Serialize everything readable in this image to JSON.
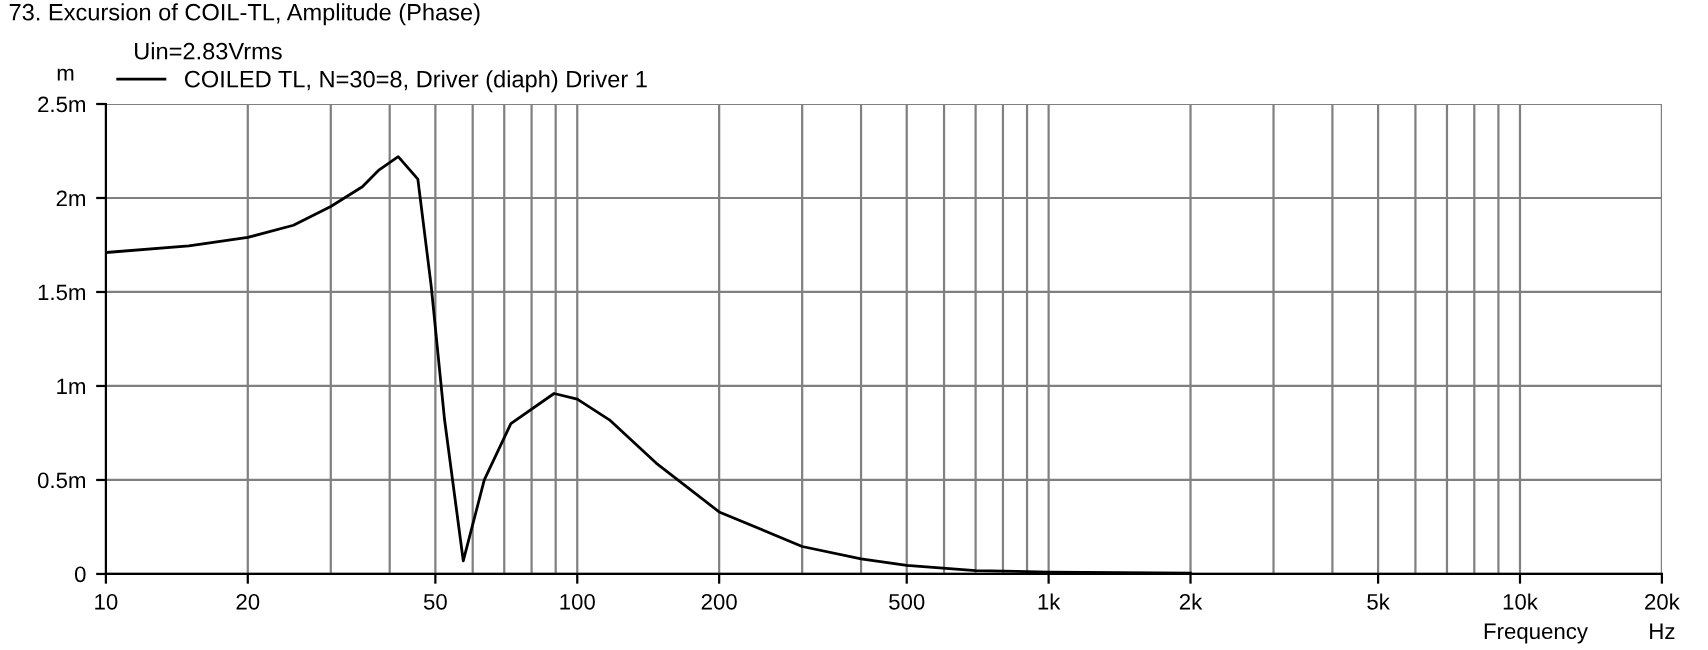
{
  "chart_data": {
    "type": "line",
    "title": "73. Excursion of COIL-TL, Amplitude (Phase)",
    "subtitle": "Uin=2.83Vrms",
    "xlabel": "Frequency",
    "ylabel": "m",
    "annotations": [
      "Hz"
    ],
    "series": [
      {
        "name": "COILED TL, N=30=8, Driver (diaph) Driver 1",
        "color": "#000000",
        "x": [
          10,
          15,
          20,
          25,
          30,
          35,
          38,
          41.7,
          45.9,
          49,
          52.3,
          57.3,
          63.5,
          72.3,
          89.3,
          100,
          117,
          147,
          200,
          300,
          400,
          500,
          700,
          1000,
          2000
        ],
        "values": [
          1.71,
          1.745,
          1.79,
          1.855,
          1.955,
          2.06,
          2.15,
          2.22,
          2.1,
          1.53,
          0.82,
          0.07,
          0.5,
          0.8,
          0.96,
          0.93,
          0.82,
          0.59,
          0.33,
          0.146,
          0.08,
          0.046,
          0.018,
          0.01,
          0.005
        ]
      }
    ],
    "log": "x",
    "xlim": [
      10,
      20000
    ],
    "xticks": [
      {
        "value": 10,
        "label": "10"
      },
      {
        "value": 20,
        "label": "20"
      },
      {
        "value": 50,
        "label": "50"
      },
      {
        "value": 100,
        "label": "100"
      },
      {
        "value": 200,
        "label": "200"
      },
      {
        "value": 500,
        "label": "500"
      },
      {
        "value": 1000,
        "label": "1k"
      },
      {
        "value": 2000,
        "label": "2k"
      },
      {
        "value": 5000,
        "label": "5k"
      },
      {
        "value": 10000,
        "label": "10k"
      },
      {
        "value": 20000,
        "label": "20k"
      }
    ],
    "ylim": [
      0,
      2.5
    ],
    "yticks": [
      {
        "value": 0,
        "label": "0"
      },
      {
        "value": 0.5,
        "label": "0.5m"
      },
      {
        "value": 1,
        "label": "1m"
      },
      {
        "value": 1.5,
        "label": "1.5m"
      },
      {
        "value": 2,
        "label": "2m"
      },
      {
        "value": 2.5,
        "label": "2.5m"
      }
    ],
    "grid": true,
    "legend": "top left",
    "line_style": "solid",
    "marker": "none"
  }
}
